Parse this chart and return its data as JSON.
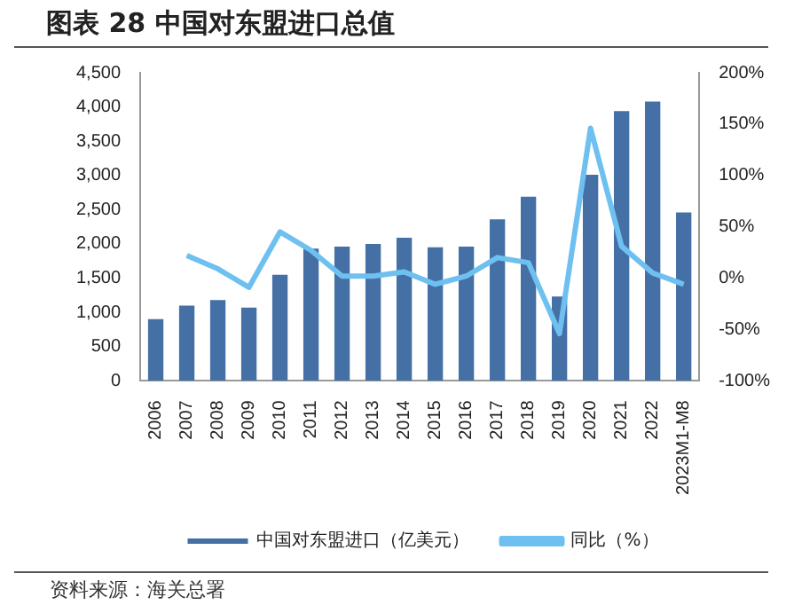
{
  "chart_data": {
    "type": "bar",
    "title": "图表 28  中国对东盟进口总值",
    "categories": [
      "2006",
      "2007",
      "2008",
      "2009",
      "2010",
      "2011",
      "2012",
      "2013",
      "2014",
      "2015",
      "2016",
      "2017",
      "2018",
      "2019",
      "2020",
      "2021",
      "2022",
      "2023M1-M8"
    ],
    "series": [
      {
        "name": "中国对东盟进口（亿美元）",
        "color": "#4470a6",
        "values": [
          900,
          1100,
          1180,
          1070,
          1550,
          1930,
          1960,
          2000,
          2090,
          1950,
          1960,
          2360,
          2690,
          1230,
          3010,
          3940,
          4080,
          2460
        ]
      },
      {
        "name": "同比（%）",
        "type": "line",
        "axis": "y2",
        "color": "#6ec0f0",
        "values": [
          null,
          22,
          9,
          -9,
          45,
          27,
          2,
          2,
          6,
          -6,
          2,
          20,
          15,
          -54,
          146,
          31,
          5,
          -6
        ]
      }
    ],
    "ylim": [
      0,
      4500
    ],
    "yticks": [
      0,
      500,
      {
        "value": 1000,
        "label": "1,000"
      },
      {
        "value": 1500,
        "label": "1,500"
      },
      {
        "value": 2000,
        "label": "2,000"
      },
      {
        "value": 2500,
        "label": "2,500"
      },
      {
        "value": 3000,
        "label": "3,000"
      },
      {
        "value": 3500,
        "label": "3,500"
      },
      {
        "value": 4000,
        "label": "4,000"
      },
      {
        "value": 4500,
        "label": "4,500"
      }
    ],
    "y2lim": [
      -100,
      200
    ],
    "y2ticks": [
      {
        "value": -100,
        "label": "-100%"
      },
      {
        "value": -50,
        "label": "-50%"
      },
      {
        "value": 0,
        "label": "0%"
      },
      {
        "value": 50,
        "label": "50%"
      },
      {
        "value": 100,
        "label": "100%"
      },
      {
        "value": 150,
        "label": "150%"
      },
      {
        "value": 200,
        "label": "200%"
      }
    ],
    "grid": false,
    "legend": "bottom",
    "marker": "none",
    "line_style": "solid",
    "annotations": [
      "资料来源：海关总署"
    ]
  }
}
